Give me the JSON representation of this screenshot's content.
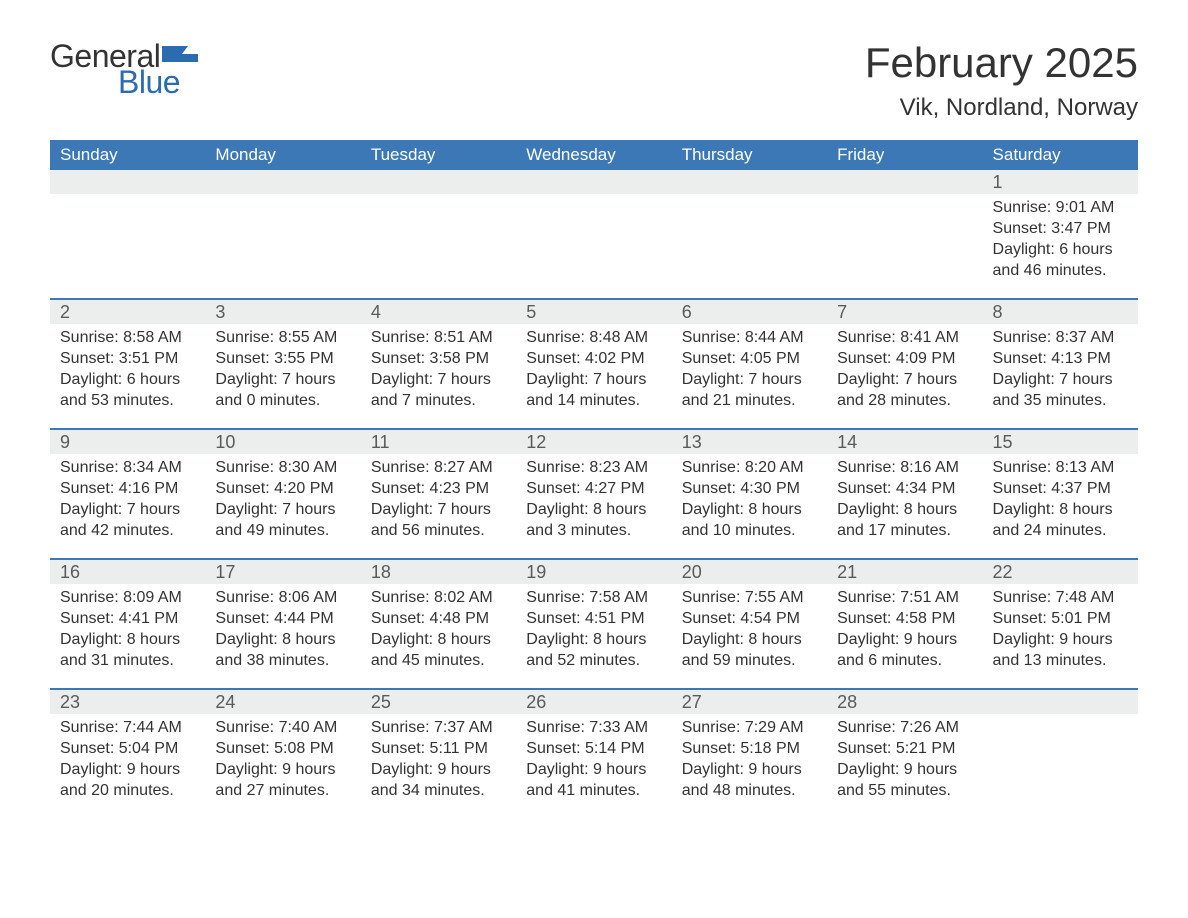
{
  "logo": {
    "text_general": "General",
    "text_blue": "Blue",
    "icon_color": "#2b6cb0"
  },
  "title": "February 2025",
  "location": "Vik, Nordland, Norway",
  "colors": {
    "header_bg": "#3b78b5",
    "header_text": "#ffffff",
    "daynum_bg": "#eceded",
    "daynum_text": "#5a5a5a",
    "body_text": "#333333",
    "row_border": "#3b78b5",
    "page_bg": "#ffffff"
  },
  "days_of_week": [
    "Sunday",
    "Monday",
    "Tuesday",
    "Wednesday",
    "Thursday",
    "Friday",
    "Saturday"
  ],
  "weeks": [
    [
      null,
      null,
      null,
      null,
      null,
      null,
      {
        "n": "1",
        "sunrise": "9:01 AM",
        "sunset": "3:47 PM",
        "day_h": "6",
        "day_m": "46"
      }
    ],
    [
      {
        "n": "2",
        "sunrise": "8:58 AM",
        "sunset": "3:51 PM",
        "day_h": "6",
        "day_m": "53"
      },
      {
        "n": "3",
        "sunrise": "8:55 AM",
        "sunset": "3:55 PM",
        "day_h": "7",
        "day_m": "0"
      },
      {
        "n": "4",
        "sunrise": "8:51 AM",
        "sunset": "3:58 PM",
        "day_h": "7",
        "day_m": "7"
      },
      {
        "n": "5",
        "sunrise": "8:48 AM",
        "sunset": "4:02 PM",
        "day_h": "7",
        "day_m": "14"
      },
      {
        "n": "6",
        "sunrise": "8:44 AM",
        "sunset": "4:05 PM",
        "day_h": "7",
        "day_m": "21"
      },
      {
        "n": "7",
        "sunrise": "8:41 AM",
        "sunset": "4:09 PM",
        "day_h": "7",
        "day_m": "28"
      },
      {
        "n": "8",
        "sunrise": "8:37 AM",
        "sunset": "4:13 PM",
        "day_h": "7",
        "day_m": "35"
      }
    ],
    [
      {
        "n": "9",
        "sunrise": "8:34 AM",
        "sunset": "4:16 PM",
        "day_h": "7",
        "day_m": "42"
      },
      {
        "n": "10",
        "sunrise": "8:30 AM",
        "sunset": "4:20 PM",
        "day_h": "7",
        "day_m": "49"
      },
      {
        "n": "11",
        "sunrise": "8:27 AM",
        "sunset": "4:23 PM",
        "day_h": "7",
        "day_m": "56"
      },
      {
        "n": "12",
        "sunrise": "8:23 AM",
        "sunset": "4:27 PM",
        "day_h": "8",
        "day_m": "3"
      },
      {
        "n": "13",
        "sunrise": "8:20 AM",
        "sunset": "4:30 PM",
        "day_h": "8",
        "day_m": "10"
      },
      {
        "n": "14",
        "sunrise": "8:16 AM",
        "sunset": "4:34 PM",
        "day_h": "8",
        "day_m": "17"
      },
      {
        "n": "15",
        "sunrise": "8:13 AM",
        "sunset": "4:37 PM",
        "day_h": "8",
        "day_m": "24"
      }
    ],
    [
      {
        "n": "16",
        "sunrise": "8:09 AM",
        "sunset": "4:41 PM",
        "day_h": "8",
        "day_m": "31"
      },
      {
        "n": "17",
        "sunrise": "8:06 AM",
        "sunset": "4:44 PM",
        "day_h": "8",
        "day_m": "38"
      },
      {
        "n": "18",
        "sunrise": "8:02 AM",
        "sunset": "4:48 PM",
        "day_h": "8",
        "day_m": "45"
      },
      {
        "n": "19",
        "sunrise": "7:58 AM",
        "sunset": "4:51 PM",
        "day_h": "8",
        "day_m": "52"
      },
      {
        "n": "20",
        "sunrise": "7:55 AM",
        "sunset": "4:54 PM",
        "day_h": "8",
        "day_m": "59"
      },
      {
        "n": "21",
        "sunrise": "7:51 AM",
        "sunset": "4:58 PM",
        "day_h": "9",
        "day_m": "6"
      },
      {
        "n": "22",
        "sunrise": "7:48 AM",
        "sunset": "5:01 PM",
        "day_h": "9",
        "day_m": "13"
      }
    ],
    [
      {
        "n": "23",
        "sunrise": "7:44 AM",
        "sunset": "5:04 PM",
        "day_h": "9",
        "day_m": "20"
      },
      {
        "n": "24",
        "sunrise": "7:40 AM",
        "sunset": "5:08 PM",
        "day_h": "9",
        "day_m": "27"
      },
      {
        "n": "25",
        "sunrise": "7:37 AM",
        "sunset": "5:11 PM",
        "day_h": "9",
        "day_m": "34"
      },
      {
        "n": "26",
        "sunrise": "7:33 AM",
        "sunset": "5:14 PM",
        "day_h": "9",
        "day_m": "41"
      },
      {
        "n": "27",
        "sunrise": "7:29 AM",
        "sunset": "5:18 PM",
        "day_h": "9",
        "day_m": "48"
      },
      {
        "n": "28",
        "sunrise": "7:26 AM",
        "sunset": "5:21 PM",
        "day_h": "9",
        "day_m": "55"
      },
      null
    ]
  ],
  "labels": {
    "sunrise": "Sunrise:",
    "sunset": "Sunset:",
    "daylight_prefix": "Daylight:",
    "hours_word": "hours",
    "and_word": "and",
    "minutes_word": "minutes."
  }
}
